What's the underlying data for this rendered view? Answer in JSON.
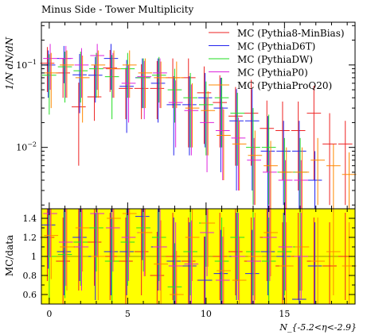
{
  "chart_data": {
    "type": "scatter",
    "title": "Minus Side - Tower Multiplicity",
    "xlabel": "N_{-5.2<η<-2.9}",
    "ylabel": "1/N dN/dN",
    "ratio_ylabel": "MC/data",
    "xlim": [
      -0.5,
      19.5
    ],
    "ylim": [
      0.0018,
      0.33
    ],
    "yscale": "log",
    "ratio_ylim": [
      0.5,
      1.5
    ],
    "x_ticks": [
      0,
      5,
      10,
      15
    ],
    "y_ticks": [
      0.1,
      0.01
    ],
    "y_tick_labels": [
      "10^-1",
      "10^-2"
    ],
    "ratio_ticks": [
      0.6,
      0.8,
      1,
      1.2,
      1.4
    ],
    "ratio_band_color": "#ffff00",
    "legend_position": "top-right",
    "series": [
      {
        "name": "MC (Pythia8-MinBias)",
        "color": "#ee2222",
        "x": [
          0,
          1,
          2,
          3,
          4,
          5,
          6,
          7,
          8,
          9,
          10,
          11,
          12,
          13,
          14,
          15,
          16,
          17,
          18,
          19
        ],
        "values": [
          0.105,
          0.08,
          0.031,
          0.041,
          0.092,
          0.052,
          0.052,
          0.052,
          0.07,
          0.07,
          0.046,
          0.035,
          0.024,
          0.026,
          0.017,
          0.016,
          0.016,
          0.026,
          0.011,
          0.011
        ],
        "err_low": [
          0.058,
          0.04,
          0.025,
          0.02,
          0.045,
          0.03,
          0.03,
          0.03,
          0.04,
          0.06,
          0.035,
          0.025,
          0.018,
          0.02,
          0.012,
          0.012,
          0.013,
          0.022,
          0.009,
          0.009
        ],
        "err_high": [
          0.06,
          0.04,
          0.03,
          0.06,
          0.06,
          0.04,
          0.05,
          0.06,
          0.05,
          0.05,
          0.05,
          0.04,
          0.03,
          0.04,
          0.02,
          0.02,
          0.02,
          0.03,
          0.015,
          0.01
        ],
        "ratio": [
          1.2,
          0.95,
          1.1,
          1.15,
          1.0,
          0.95,
          1.05,
          0.8,
          1.0,
          0.95,
          0.75,
          1.0,
          1.05,
          0.95,
          1.2,
          0.9,
          1.0,
          0.95,
          0.9,
          1.0
        ]
      },
      {
        "name": "MC (PythiaD6T)",
        "color": "#2222ee",
        "x": [
          0,
          1,
          2,
          3,
          4,
          5,
          6,
          7,
          8,
          9,
          10,
          11,
          12,
          13,
          14,
          15,
          16,
          17
        ],
        "values": [
          0.1,
          0.12,
          0.076,
          0.075,
          0.12,
          0.055,
          0.07,
          0.06,
          0.033,
          0.033,
          0.04,
          0.03,
          0.021,
          0.021,
          0.009,
          0.009,
          0.009,
          0.004
        ],
        "err_low": [
          0.06,
          0.06,
          0.05,
          0.04,
          0.07,
          0.04,
          0.04,
          0.04,
          0.025,
          0.025,
          0.03,
          0.025,
          0.018,
          0.018,
          0.008,
          0.007,
          0.008,
          0.003
        ],
        "err_high": [
          0.05,
          0.05,
          0.06,
          0.05,
          0.06,
          0.06,
          0.05,
          0.06,
          0.04,
          0.04,
          0.04,
          0.04,
          0.03,
          0.03,
          0.015,
          0.012,
          0.012,
          0.005
        ],
        "ratio": [
          1.33,
          1.05,
          1.2,
          1.0,
          1.05,
          1.05,
          1.42,
          1.1,
          0.95,
          0.9,
          0.75,
          0.82,
          1.0,
          0.82,
          1.05,
          1.0,
          0.55,
          0.9
        ]
      },
      {
        "name": "MC (PythiaDW)",
        "color": "#22dd22",
        "x": [
          0,
          1,
          2,
          3,
          4,
          5,
          6,
          7,
          8,
          9,
          10,
          11,
          12,
          13,
          14,
          15,
          16
        ],
        "values": [
          0.075,
          0.095,
          0.085,
          0.09,
          0.072,
          0.09,
          0.07,
          0.075,
          0.05,
          0.04,
          0.033,
          0.04,
          0.026,
          0.01,
          0.01,
          0.005,
          0.005
        ],
        "err_low": [
          0.05,
          0.06,
          0.05,
          0.05,
          0.05,
          0.05,
          0.04,
          0.04,
          0.03,
          0.03,
          0.025,
          0.03,
          0.02,
          0.008,
          0.008,
          0.004,
          0.004
        ],
        "err_high": [
          0.06,
          0.05,
          0.06,
          0.05,
          0.06,
          0.05,
          0.05,
          0.05,
          0.04,
          0.04,
          0.03,
          0.03,
          0.02,
          0.02,
          0.015,
          0.008,
          0.008
        ],
        "ratio": [
          1.0,
          1.02,
          1.15,
          1.3,
          0.95,
          1.15,
          1.3,
          1.2,
          0.68,
          1.05,
          1.35,
          0.95,
          1.2,
          1.05,
          0.95,
          1.05,
          1.1
        ]
      },
      {
        "name": "MC (PythiaP0)",
        "color": "#dd22dd",
        "x": [
          0,
          1,
          2,
          3,
          4,
          5,
          6,
          7,
          8,
          9,
          10,
          11,
          12,
          13,
          14,
          15,
          16
        ],
        "values": [
          0.12,
          0.12,
          0.1,
          0.13,
          0.09,
          0.06,
          0.072,
          0.08,
          0.035,
          0.028,
          0.02,
          0.016,
          0.013,
          0.007,
          0.005,
          0.004,
          0.004
        ],
        "err_low": [
          0.07,
          0.08,
          0.06,
          0.08,
          0.05,
          0.04,
          0.05,
          0.05,
          0.025,
          0.02,
          0.015,
          0.012,
          0.01,
          0.005,
          0.004,
          0.003,
          0.003
        ],
        "err_high": [
          0.06,
          0.05,
          0.06,
          0.05,
          0.05,
          0.04,
          0.04,
          0.04,
          0.03,
          0.03,
          0.02,
          0.015,
          0.01,
          0.006,
          0.004,
          0.003,
          0.003
        ],
        "ratio": [
          1.45,
          1.15,
          1.1,
          1.45,
          1.3,
          1.2,
          1.25,
          1.1,
          0.9,
          0.92,
          1.25,
          0.75,
          1.0,
          0.95,
          1.2,
          1.1,
          1.0
        ]
      },
      {
        "name": "MC (PythiaProQ20)",
        "color": "#ff8800",
        "x": [
          0,
          1,
          2,
          3,
          4,
          5,
          6,
          7,
          8,
          9,
          10,
          11,
          12,
          13,
          14,
          15,
          16,
          17,
          18,
          19
        ],
        "values": [
          0.08,
          0.1,
          0.07,
          0.1,
          0.09,
          0.1,
          0.08,
          0.07,
          0.07,
          0.03,
          0.028,
          0.014,
          0.011,
          0.008,
          0.006,
          0.005,
          0.005,
          0.007,
          0.006,
          0.0047
        ],
        "err_low": [
          0.05,
          0.06,
          0.05,
          0.06,
          0.05,
          0.06,
          0.05,
          0.04,
          0.04,
          0.02,
          0.02,
          0.01,
          0.008,
          0.006,
          0.005,
          0.004,
          0.004,
          0.005,
          0.005,
          0.004
        ],
        "err_high": [
          0.06,
          0.05,
          0.06,
          0.05,
          0.06,
          0.05,
          0.04,
          0.04,
          0.04,
          0.03,
          0.02,
          0.015,
          0.01,
          0.008,
          0.006,
          0.005,
          0.005,
          0.006,
          0.005,
          0.004
        ],
        "ratio": [
          1.22,
          1.1,
          1.3,
          1.0,
          1.4,
          1.45,
          1.25,
          0.92,
          0.6,
          1.2,
          1.35,
          0.85,
          0.75,
          1.0,
          1.25,
          0.9,
          1.1,
          0.95,
          1.05,
          0.9
        ]
      }
    ]
  }
}
